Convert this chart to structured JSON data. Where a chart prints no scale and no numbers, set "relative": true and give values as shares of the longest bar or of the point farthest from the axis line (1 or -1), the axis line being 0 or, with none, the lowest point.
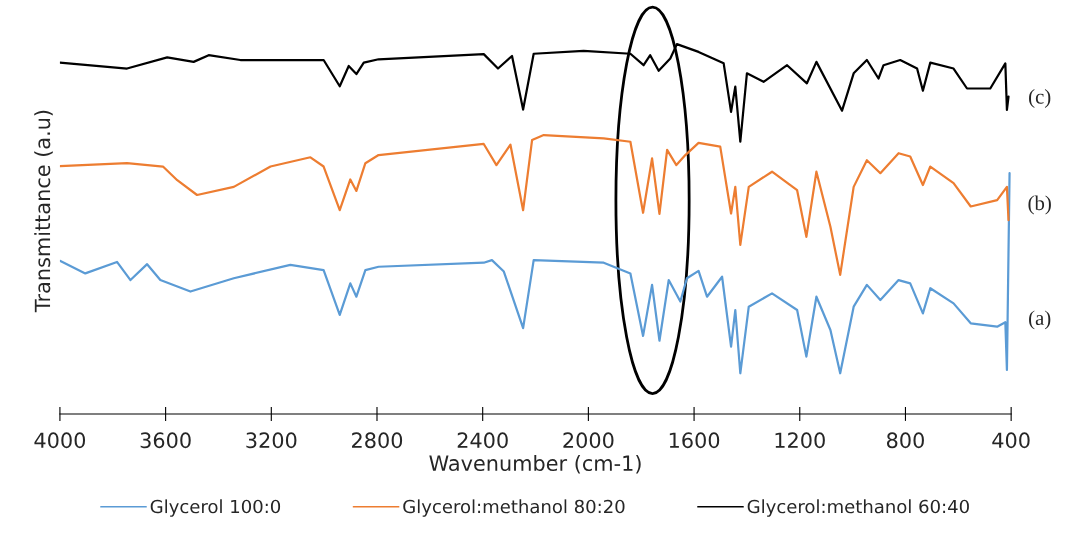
{
  "chart_data": {
    "type": "line",
    "relative": true,
    "xlabel": "Wavenumber (cm-1)",
    "ylabel": "Transmittance (a.u)",
    "xlim": [
      4000,
      400
    ],
    "xticks": [
      4000,
      3600,
      3200,
      2800,
      2400,
      2000,
      1600,
      1200,
      800,
      400
    ],
    "grid": false,
    "legend": "bottom",
    "marker": "none",
    "line_style": "solid",
    "annotations": [
      "(a)",
      "(b)",
      "(c)"
    ],
    "series": [
      {
        "name": "Glycerol 100:0",
        "color": "#5b9bd5",
        "x": [
          4000,
          3904,
          3784,
          3733,
          3670,
          3620,
          3506,
          3342,
          3128,
          3002,
          2941,
          2901,
          2878,
          2844,
          2794,
          2396,
          2365,
          2320,
          2247,
          2207,
          1942,
          1841,
          1793,
          1759,
          1731,
          1696,
          1652,
          1627,
          1583,
          1551,
          1494,
          1460,
          1444,
          1425,
          1393,
          1305,
          1210,
          1175,
          1137,
          1084,
          1047,
          996,
          946,
          895,
          826,
          782,
          734,
          706,
          618,
          553,
          453,
          422,
          416,
          406
        ],
        "values": [
          0.414,
          0.38,
          0.411,
          0.362,
          0.405,
          0.362,
          0.331,
          0.367,
          0.403,
          0.389,
          0.268,
          0.353,
          0.317,
          0.389,
          0.398,
          0.409,
          0.416,
          0.385,
          0.232,
          0.416,
          0.409,
          0.38,
          0.211,
          0.349,
          0.198,
          0.362,
          0.304,
          0.367,
          0.387,
          0.317,
          0.371,
          0.182,
          0.281,
          0.11,
          0.29,
          0.326,
          0.281,
          0.155,
          0.317,
          0.227,
          0.11,
          0.29,
          0.349,
          0.308,
          0.362,
          0.353,
          0.272,
          0.34,
          0.299,
          0.245,
          0.236,
          0.248,
          0.119,
          0.651
        ]
      },
      {
        "name": "Glycerol:methanol 80:20",
        "color": "#ed7d31",
        "x": [
          4000,
          3746,
          3610,
          3556,
          3481,
          3342,
          3203,
          3052,
          3002,
          2941,
          2901,
          2878,
          2844,
          2794,
          2396,
          2348,
          2295,
          2247,
          2213,
          2169,
          1942,
          1841,
          1793,
          1759,
          1731,
          1702,
          1667,
          1633,
          1583,
          1501,
          1460,
          1444,
          1425,
          1393,
          1305,
          1210,
          1175,
          1137,
          1084,
          1047,
          996,
          946,
          895,
          826,
          782,
          734,
          706,
          618,
          553,
          453,
          416,
          410
        ],
        "values": [
          0.67,
          0.678,
          0.669,
          0.632,
          0.592,
          0.614,
          0.669,
          0.694,
          0.669,
          0.551,
          0.634,
          0.603,
          0.678,
          0.7,
          0.73,
          0.673,
          0.728,
          0.551,
          0.741,
          0.754,
          0.745,
          0.736,
          0.544,
          0.691,
          0.541,
          0.714,
          0.673,
          0.7,
          0.733,
          0.723,
          0.542,
          0.614,
          0.457,
          0.614,
          0.655,
          0.605,
          0.479,
          0.655,
          0.506,
          0.376,
          0.614,
          0.686,
          0.651,
          0.705,
          0.696,
          0.619,
          0.669,
          0.624,
          0.561,
          0.578,
          0.614,
          0.524
        ]
      },
      {
        "name": "Glycerol:methanol 60:40",
        "color": "#000000",
        "x": [
          4000,
          3746,
          3594,
          3494,
          3437,
          3317,
          3002,
          2941,
          2907,
          2878,
          2850,
          2794,
          2396,
          2342,
          2289,
          2247,
          2207,
          2018,
          1841,
          1791,
          1766,
          1734,
          1690,
          1665,
          1583,
          1488,
          1460,
          1444,
          1425,
          1400,
          1337,
          1248,
          1173,
          1137,
          1040,
          996,
          946,
          902,
          883,
          820,
          756,
          734,
          706,
          618,
          567,
          479,
          422,
          416,
          410
        ],
        "values": [
          0.95,
          0.934,
          0.964,
          0.952,
          0.97,
          0.957,
          0.957,
          0.886,
          0.941,
          0.919,
          0.95,
          0.959,
          0.973,
          0.934,
          0.968,
          0.823,
          0.974,
          0.982,
          0.974,
          0.943,
          0.97,
          0.928,
          0.961,
          1.0,
          0.979,
          0.948,
          0.817,
          0.885,
          0.736,
          0.921,
          0.898,
          0.943,
          0.894,
          0.952,
          0.82,
          0.921,
          0.957,
          0.907,
          0.943,
          0.957,
          0.934,
          0.874,
          0.95,
          0.934,
          0.88,
          0.88,
          0.948,
          0.822,
          0.858
        ]
      }
    ]
  }
}
